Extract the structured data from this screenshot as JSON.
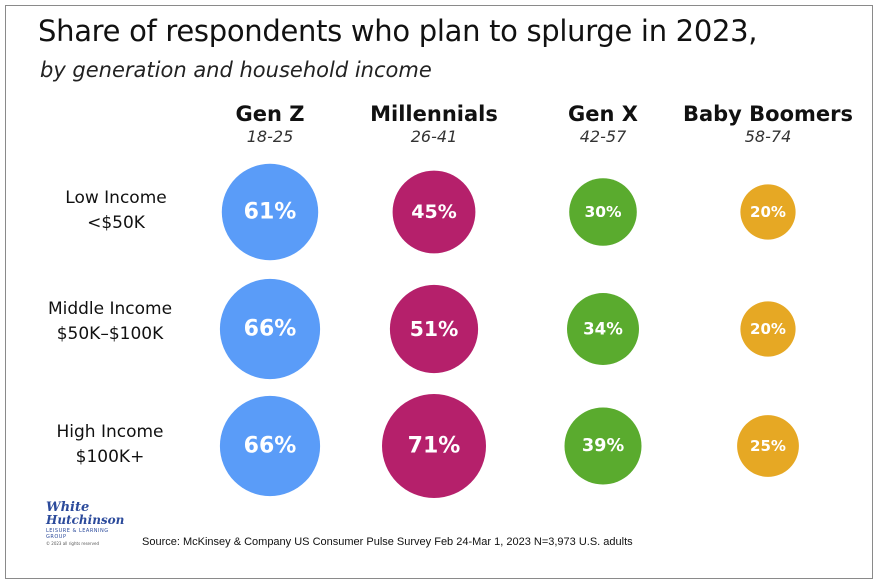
{
  "title": "Share of respondents who plan to splurge in 2023,",
  "subtitle": "by generation and household income",
  "columns": [
    {
      "name": "Gen Z",
      "age": "18-25"
    },
    {
      "name": "Millennials",
      "age": "26-41"
    },
    {
      "name": "Gen X",
      "age": "42-57"
    },
    {
      "name": "Baby Boomers",
      "age": "58-74"
    }
  ],
  "rows": [
    {
      "line1": "Low Income",
      "line2": "<$50K"
    },
    {
      "line1": "Middle Income",
      "line2": "$50K–$100K"
    },
    {
      "line1": "High Income",
      "line2": "$100K+"
    }
  ],
  "colors": {
    "Gen Z": "#5a9cf8",
    "Millennials": "#b5206b",
    "Gen X": "#5aab2e",
    "Baby Boomers": "#e6a824"
  },
  "chart_data": {
    "type": "bubble-matrix",
    "title": "Share of respondents who plan to splurge in 2023,",
    "subtitle": "by generation and household income",
    "x_categories": [
      "Gen Z",
      "Millennials",
      "Gen X",
      "Baby Boomers"
    ],
    "y_categories": [
      "Low Income <$50K",
      "Middle Income $50K–$100K",
      "High Income $100K+"
    ],
    "unit": "%",
    "series": [
      {
        "name": "Gen Z",
        "values": [
          61,
          66,
          66
        ]
      },
      {
        "name": "Millennials",
        "values": [
          45,
          51,
          71
        ]
      },
      {
        "name": "Gen X",
        "values": [
          30,
          34,
          39
        ]
      },
      {
        "name": "Baby Boomers",
        "values": [
          20,
          20,
          25
        ]
      }
    ]
  },
  "logo": {
    "line1": "White",
    "line2": "Hutchinson",
    "line3": "LEISURE & LEARNING GROUP",
    "line4": "© 2023 all rights reserved"
  },
  "source": "Source: McKinsey & Company US Consumer Pulse Survey Feb 24-Mar 1, 2023 N=3,973 U.S. adults"
}
